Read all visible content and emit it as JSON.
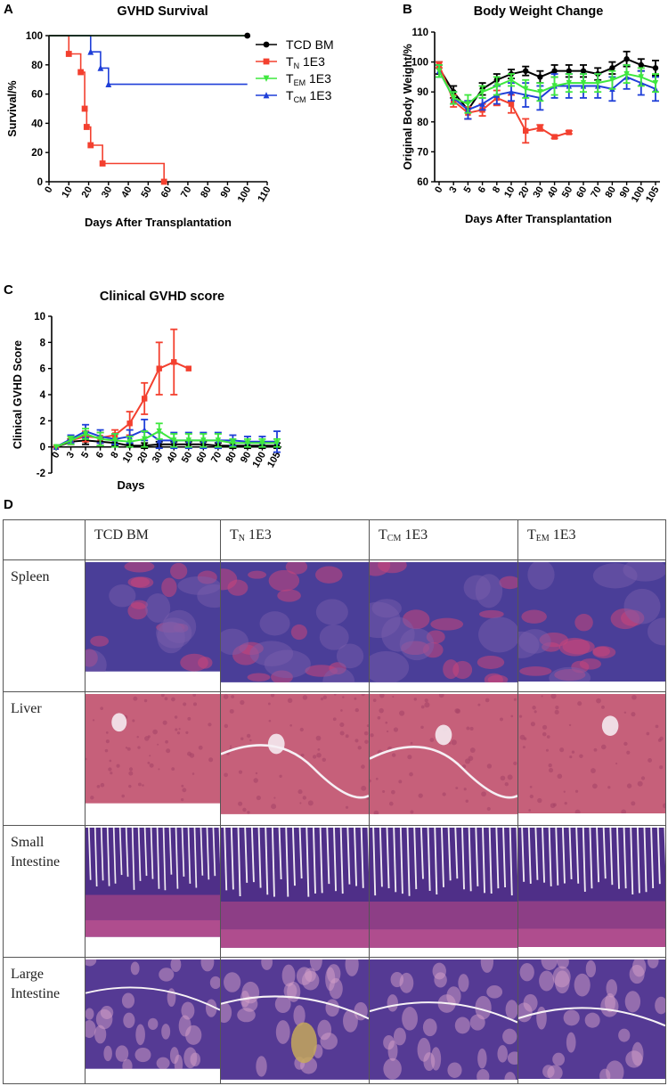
{
  "colors": {
    "tcd": "#000000",
    "tn": "#f3402f",
    "tem": "#3ee83e",
    "tcm": "#1f3fd8"
  },
  "panels": {
    "a": "A",
    "b": "B",
    "c": "C",
    "d": "D"
  },
  "legend": [
    {
      "key": "tcd",
      "main": "TCD BM",
      "sub": "",
      "rest": "",
      "marker": "circle"
    },
    {
      "key": "tn",
      "main": "T",
      "sub": "N",
      "rest": " 1E3",
      "marker": "square"
    },
    {
      "key": "tem",
      "main": "T",
      "sub": "EM",
      "rest": " 1E3",
      "marker": "triangle-down"
    },
    {
      "key": "tcm",
      "main": "T",
      "sub": "CM",
      "rest": " 1E3",
      "marker": "triangle"
    }
  ],
  "chart_data": [
    {
      "type": "line",
      "title": "GVHD Survival",
      "xlabel": "Days After Transplantation",
      "ylabel": "Survival/%",
      "xlim": [
        0,
        110
      ],
      "ylim": [
        0,
        100
      ],
      "x_ticks": [
        0,
        10,
        20,
        30,
        40,
        50,
        60,
        70,
        80,
        90,
        100,
        110
      ],
      "y_ticks": [
        0,
        20,
        40,
        60,
        80,
        100
      ],
      "legend_position": "right",
      "series": [
        {
          "name": "TCD BM",
          "key": "tcd",
          "steps": [
            [
              0,
              100
            ],
            [
              100,
              100
            ]
          ],
          "markers": [
            [
              100,
              100
            ]
          ]
        },
        {
          "name": "TN 1E3",
          "key": "tn",
          "steps": [
            [
              0,
              100
            ],
            [
              10,
              100
            ],
            [
              10,
              87.5
            ],
            [
              16,
              87.5
            ],
            [
              16,
              75
            ],
            [
              18,
              75
            ],
            [
              18,
              50
            ],
            [
              19,
              50
            ],
            [
              19,
              37.5
            ],
            [
              21,
              37.5
            ],
            [
              21,
              25
            ],
            [
              27,
              25
            ],
            [
              27,
              12.5
            ],
            [
              58,
              12.5
            ],
            [
              58,
              0
            ]
          ],
          "markers": [
            [
              10,
              87.5
            ],
            [
              16,
              75
            ],
            [
              18,
              50
            ],
            [
              19,
              37.5
            ],
            [
              21,
              25
            ],
            [
              27,
              12.5
            ],
            [
              58,
              0
            ]
          ]
        },
        {
          "name": "TEM 1E3",
          "key": "tem",
          "steps": [
            [
              0,
              100
            ],
            [
              100,
              100
            ]
          ],
          "markers": []
        },
        {
          "name": "TCM 1E3",
          "key": "tcm",
          "steps": [
            [
              0,
              100
            ],
            [
              21,
              100
            ],
            [
              21,
              88.9
            ],
            [
              26,
              88.9
            ],
            [
              26,
              77.8
            ],
            [
              30,
              77.8
            ],
            [
              30,
              66.7
            ],
            [
              100,
              66.7
            ]
          ],
          "markers": [
            [
              21,
              88.9
            ],
            [
              26,
              77.8
            ],
            [
              30,
              66.7
            ]
          ]
        }
      ]
    },
    {
      "type": "line",
      "title": "Body Weight Change",
      "xlabel": "Days After Transplantation",
      "ylabel": "Original Body Weight/%",
      "categories": [
        "0",
        "3",
        "5",
        "6",
        "8",
        "10",
        "20",
        "30",
        "40",
        "50",
        "60",
        "70",
        "80",
        "90",
        "100",
        "105"
      ],
      "ylim": [
        60,
        110
      ],
      "y_ticks": [
        60,
        70,
        80,
        90,
        100,
        110
      ],
      "series": [
        {
          "name": "TCD BM",
          "key": "tcd",
          "values": [
            98,
            90,
            84,
            91,
            94,
            96,
            97,
            95,
            97,
            97,
            97,
            96,
            98,
            101,
            99,
            98
          ],
          "errors": [
            2,
            2,
            3,
            2,
            2,
            1.5,
            1.5,
            2,
            2,
            2,
            2,
            2,
            2,
            2.5,
            2,
            2.5
          ]
        },
        {
          "name": "TN 1E3",
          "key": "tn",
          "values": [
            99,
            87,
            83,
            84,
            88,
            86,
            77,
            78,
            75,
            76.5,
            null,
            null,
            null,
            null,
            null,
            null
          ],
          "errors": [
            1,
            2,
            2,
            2,
            2.5,
            3,
            4,
            1,
            0.5,
            0.5,
            null,
            null,
            null,
            null,
            null,
            null
          ]
        },
        {
          "name": "TEM 1E3",
          "key": "tem",
          "values": [
            97,
            88,
            86,
            90,
            92,
            94,
            91,
            90,
            92,
            93,
            93,
            93,
            94,
            96,
            95,
            93
          ],
          "errors": [
            2,
            2,
            3,
            2,
            3,
            2,
            3,
            3,
            3,
            3,
            3,
            3,
            3,
            3,
            3,
            3
          ]
        },
        {
          "name": "TCM 1E3",
          "key": "tcm",
          "values": [
            97,
            88,
            84,
            86,
            89,
            90,
            89,
            88,
            92,
            92,
            92,
            92,
            91,
            95,
            93,
            91
          ],
          "errors": [
            2,
            2,
            3,
            2,
            3,
            3,
            4,
            4,
            4,
            4,
            4,
            4,
            4,
            4,
            4,
            4
          ]
        }
      ]
    },
    {
      "type": "line",
      "title": "Clinical GVHD score",
      "xlabel": "Days",
      "ylabel": "Clinical GVHD Score",
      "categories": [
        "0",
        "3",
        "5",
        "6",
        "8",
        "10",
        "20",
        "30",
        "40",
        "50",
        "60",
        "70",
        "80",
        "90",
        "100",
        "105"
      ],
      "ylim": [
        -2,
        10
      ],
      "y_ticks": [
        -2,
        0,
        2,
        4,
        6,
        8,
        10
      ],
      "series": [
        {
          "name": "TCD BM",
          "key": "tcd",
          "values": [
            0,
            0.4,
            0.5,
            0.4,
            0.3,
            0.1,
            0.1,
            0.2,
            0.2,
            0.2,
            0.2,
            0.1,
            0.1,
            0.1,
            0.1,
            0.1
          ],
          "errors": [
            0,
            0.2,
            0.3,
            0.3,
            0.2,
            0.1,
            0.2,
            0.2,
            0.2,
            0.2,
            0.2,
            0.2,
            0.2,
            0.2,
            0.2,
            0.2
          ]
        },
        {
          "name": "TN 1E3",
          "key": "tn",
          "values": [
            0,
            0.5,
            0.8,
            0.7,
            0.9,
            1.8,
            3.7,
            6.0,
            6.5,
            6.0,
            null,
            null,
            null,
            null,
            null,
            null
          ],
          "errors": [
            0,
            0.3,
            0.4,
            0.4,
            0.4,
            0.9,
            1.2,
            2.0,
            2.5,
            0,
            null,
            null,
            null,
            null,
            null,
            null
          ]
        },
        {
          "name": "TEM 1E3",
          "key": "tem",
          "values": [
            0,
            0.5,
            1.0,
            0.6,
            0.5,
            0.4,
            0.6,
            1.2,
            0.5,
            0.5,
            0.5,
            0.5,
            0.3,
            0.3,
            0.3,
            0.3
          ],
          "errors": [
            0,
            0.3,
            0.4,
            0.5,
            0.5,
            0.4,
            0.6,
            0.6,
            0.5,
            0.5,
            0.5,
            0.5,
            0.3,
            0.3,
            0.3,
            0.3
          ]
        },
        {
          "name": "TCM 1E3",
          "key": "tcm",
          "values": [
            0,
            0.6,
            1.2,
            0.8,
            0.6,
            0.8,
            1.3,
            0.5,
            0.5,
            0.5,
            0.5,
            0.5,
            0.5,
            0.4,
            0.4,
            0.4
          ],
          "errors": [
            0,
            0.3,
            0.5,
            0.5,
            0.4,
            0.5,
            0.8,
            0.6,
            0.6,
            0.6,
            0.6,
            0.6,
            0.4,
            0.4,
            0.4,
            0.8
          ]
        }
      ]
    }
  ],
  "histology": {
    "columns": [
      {
        "key": "tcd",
        "main": "TCD BM",
        "sub": "",
        "rest": ""
      },
      {
        "key": "tn",
        "main": "T",
        "sub": "N",
        "rest": " 1E3"
      },
      {
        "key": "tcm",
        "main": "T",
        "sub": "CM",
        "rest": " 1E3"
      },
      {
        "key": "tem",
        "main": "T",
        "sub": "EM",
        "rest": " 1E3"
      }
    ],
    "rows": [
      {
        "key": "spleen",
        "label": "Spleen",
        "palette": [
          "#4a3e98",
          "#7d5fad",
          "#c9457a"
        ]
      },
      {
        "key": "liver",
        "label": "Liver",
        "palette": [
          "#c6607a",
          "#dd93a6",
          "#a74468"
        ]
      },
      {
        "key": "small",
        "label": "Small Intestine",
        "palette": [
          "#4f2f88",
          "#f0eaf2",
          "#b84a86"
        ]
      },
      {
        "key": "large",
        "label": "Large Intestine",
        "palette": [
          "#553a94",
          "#d3a0c8",
          "#8e3a86"
        ]
      }
    ]
  }
}
